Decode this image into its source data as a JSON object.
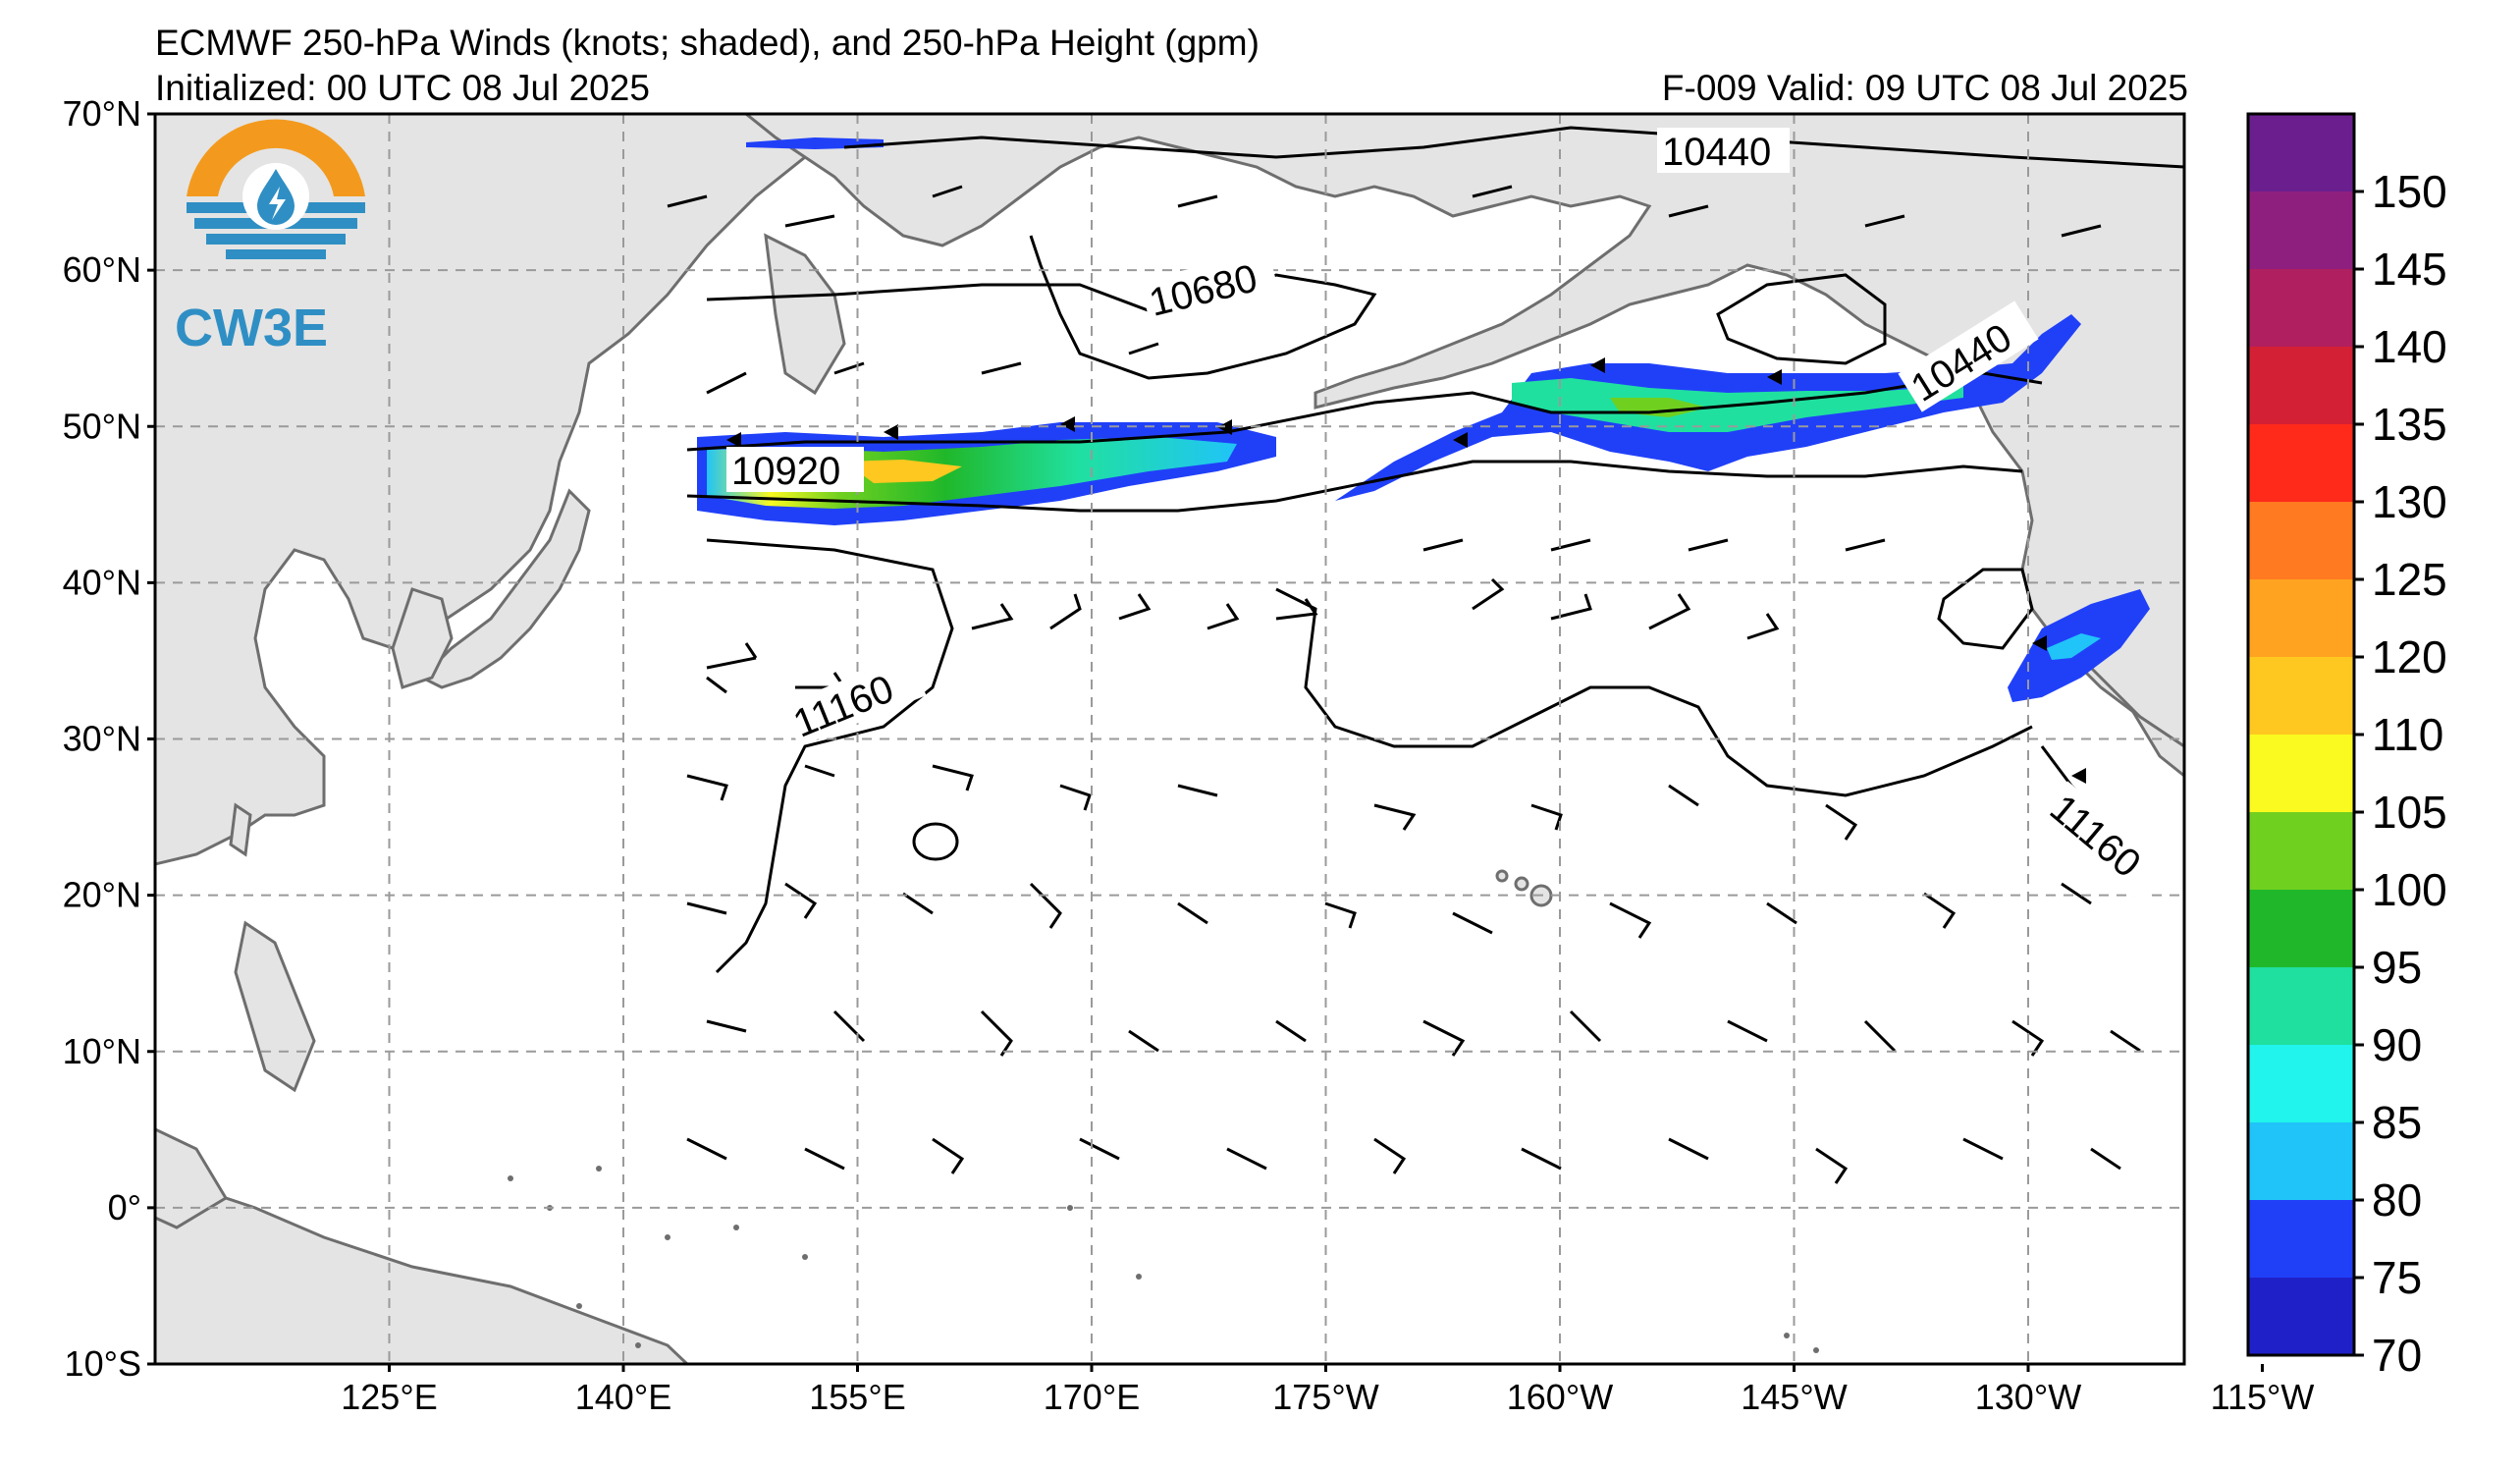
{
  "title": "ECMWF 250-hPa Winds (knots; shaded), and 250-hPa Height (gpm)",
  "initialized": "Initialized: 00 UTC 08 Jul 2025",
  "valid": "F-009  Valid: 09 UTC 08 Jul 2025",
  "logo_text": "CW3E",
  "map_extent": {
    "lon_min": 110,
    "lon_max": 240,
    "lat_min": -10,
    "lat_max": 70
  },
  "lat_labels": [
    "70°N",
    "60°N",
    "50°N",
    "40°N",
    "30°N",
    "20°N",
    "10°N",
    "0°",
    "10°S"
  ],
  "lon_labels": [
    "125°E",
    "140°E",
    "155°E",
    "170°E",
    "175°W",
    "160°W",
    "145°W",
    "130°W",
    "115°W"
  ],
  "contour_labels": [
    "10440",
    "10680",
    "10920",
    "11160",
    "10440",
    "11160"
  ],
  "colorbar": {
    "labels": [
      "150",
      "145",
      "140",
      "135",
      "130",
      "125",
      "120",
      "110",
      "105",
      "100",
      "95",
      "90",
      "85",
      "80",
      "75",
      "70"
    ],
    "colors": [
      "#6b1f8f",
      "#8f1f7f",
      "#b01f5f",
      "#d42035",
      "#ff2a1a",
      "#ff7a20",
      "#ffa320",
      "#ffc820",
      "#fafa20",
      "#70d020",
      "#20b82a",
      "#20e0a0",
      "#20f4ec",
      "#20c4f8",
      "#2040f8",
      "#2020c8"
    ]
  },
  "colors": {
    "land": "#e4e4e4",
    "ocean": "#ffffff",
    "grid": "#9a9a9a",
    "coast": "#6e6e6e"
  }
}
